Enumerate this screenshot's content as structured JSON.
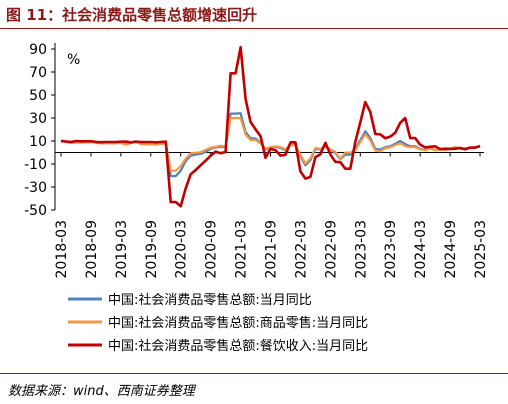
{
  "header": {
    "title": "图 11：社会消费品零售总额增速回升"
  },
  "footer": {
    "source": "数据来源：wind、西南证券整理"
  },
  "chart_data": {
    "type": "line",
    "title": "",
    "ylabel": "%",
    "xlabel": "",
    "ylim": [
      -50,
      90
    ],
    "yticks": [
      -50,
      -30,
      -10,
      10,
      30,
      50,
      70,
      90
    ],
    "xticks": [
      "2018-03",
      "2018-09",
      "2019-03",
      "2019-09",
      "2020-03",
      "2020-09",
      "2021-03",
      "2021-09",
      "2022-03",
      "2022-09",
      "2023-03",
      "2023-09",
      "2024-03",
      "2024-09",
      "2025-03"
    ],
    "grid": false,
    "legend_position": "bottom",
    "x": [
      "2018-03",
      "2018-04",
      "2018-05",
      "2018-06",
      "2018-07",
      "2018-08",
      "2018-09",
      "2018-10",
      "2018-11",
      "2018-12",
      "2019-01",
      "2019-02",
      "2019-03",
      "2019-04",
      "2019-05",
      "2019-06",
      "2019-07",
      "2019-08",
      "2019-09",
      "2019-10",
      "2019-11",
      "2019-12",
      "2020-01",
      "2020-02",
      "2020-03",
      "2020-04",
      "2020-05",
      "2020-06",
      "2020-07",
      "2020-08",
      "2020-09",
      "2020-10",
      "2020-11",
      "2020-12",
      "2021-01",
      "2021-02",
      "2021-03",
      "2021-04",
      "2021-05",
      "2021-06",
      "2021-07",
      "2021-08",
      "2021-09",
      "2021-10",
      "2021-11",
      "2021-12",
      "2022-01",
      "2022-02",
      "2022-03",
      "2022-04",
      "2022-05",
      "2022-06",
      "2022-07",
      "2022-08",
      "2022-09",
      "2022-10",
      "2022-11",
      "2022-12",
      "2023-01",
      "2023-02",
      "2023-03",
      "2023-04",
      "2023-05",
      "2023-06",
      "2023-07",
      "2023-08",
      "2023-09",
      "2023-10",
      "2023-11",
      "2023-12",
      "2024-01",
      "2024-02",
      "2024-03",
      "2024-04",
      "2024-05",
      "2024-06",
      "2024-07",
      "2024-08",
      "2024-09",
      "2024-10",
      "2024-11",
      "2024-12",
      "2025-01",
      "2025-02",
      "2025-03"
    ],
    "series": [
      {
        "name": "中国:社会消费品零售总额:当月同比",
        "color": "#4f81bd",
        "values": [
          10.1,
          9.4,
          8.5,
          9.0,
          8.8,
          9.0,
          9.2,
          8.6,
          8.1,
          8.2,
          8.2,
          8.2,
          8.7,
          7.2,
          8.6,
          9.8,
          7.6,
          7.5,
          7.8,
          7.2,
          8.0,
          8.0,
          -20.5,
          -20.5,
          -15.8,
          -7.5,
          -2.8,
          -1.8,
          -1.1,
          0.5,
          3.3,
          4.3,
          5.0,
          4.6,
          33.8,
          33.8,
          34.2,
          17.7,
          12.4,
          12.1,
          8.5,
          2.5,
          4.4,
          4.9,
          3.9,
          1.7,
          6.7,
          6.7,
          -3.5,
          -11.1,
          -6.7,
          3.1,
          2.7,
          5.4,
          2.5,
          -0.5,
          -5.9,
          -1.8,
          -1.8,
          3.5,
          10.6,
          18.4,
          12.7,
          3.1,
          2.5,
          4.6,
          5.5,
          7.6,
          10.1,
          7.4,
          5.5,
          5.5,
          3.1,
          2.3,
          3.7,
          2.0,
          2.7,
          2.1,
          3.2,
          4.8,
          3.0,
          3.7,
          4.0,
          4.0,
          5.9
        ]
      },
      {
        "name": "中国:社会消费品零售总额:商品零售:当月同比",
        "color": "#f79646",
        "values": [
          9.8,
          9.1,
          8.3,
          8.8,
          8.6,
          8.8,
          9.0,
          8.4,
          7.9,
          8.0,
          8.0,
          8.0,
          8.3,
          6.8,
          8.2,
          9.6,
          7.2,
          7.0,
          7.3,
          6.8,
          7.6,
          7.7,
          -15.8,
          -15.8,
          -12.0,
          -5.2,
          -0.8,
          -0.2,
          0.2,
          2.3,
          4.3,
          4.8,
          5.9,
          5.0,
          30.0,
          30.0,
          30.0,
          15.6,
          10.9,
          10.8,
          7.9,
          3.3,
          4.5,
          5.3,
          4.7,
          2.5,
          6.5,
          6.5,
          -2.1,
          -9.7,
          -5.0,
          3.9,
          3.2,
          5.1,
          2.8,
          0.5,
          -5.6,
          -0.1,
          -0.1,
          1.7,
          9.1,
          15.9,
          10.5,
          1.7,
          1.0,
          3.7,
          4.6,
          6.5,
          8.0,
          5.5,
          4.6,
          4.6,
          2.7,
          2.0,
          3.6,
          2.0,
          2.7,
          2.1,
          3.2,
          4.8,
          3.0,
          3.7,
          4.0,
          4.0,
          5.8
        ]
      },
      {
        "name": "中国:社会消费品零售总额:餐饮收入:当月同比",
        "color": "#c00000",
        "values": [
          10.1,
          9.6,
          9.1,
          10.0,
          9.7,
          9.7,
          9.8,
          9.2,
          9.0,
          9.1,
          9.1,
          9.1,
          9.4,
          9.6,
          8.7,
          9.4,
          9.1,
          9.1,
          9.1,
          8.9,
          9.1,
          9.4,
          -43.1,
          -43.1,
          -46.8,
          -31.1,
          -18.9,
          -15.2,
          -11.0,
          -7.0,
          -2.9,
          0.8,
          -0.6,
          0.4,
          68.9,
          68.9,
          91.6,
          46.4,
          26.6,
          20.2,
          14.3,
          -4.5,
          3.1,
          2.0,
          -2.7,
          -2.0,
          8.9,
          8.9,
          -16.4,
          -22.7,
          -21.1,
          -4.0,
          -1.5,
          8.4,
          -1.7,
          -8.1,
          -8.4,
          -14.1,
          -14.1,
          9.2,
          26.3,
          43.8,
          35.1,
          16.1,
          15.8,
          12.4,
          13.8,
          17.1,
          25.8,
          30.0,
          12.5,
          12.5,
          6.9,
          4.4,
          5.0,
          5.4,
          3.0,
          3.3,
          3.1,
          3.2,
          4.0,
          2.7,
          4.3,
          4.3,
          5.6
        ]
      }
    ]
  }
}
